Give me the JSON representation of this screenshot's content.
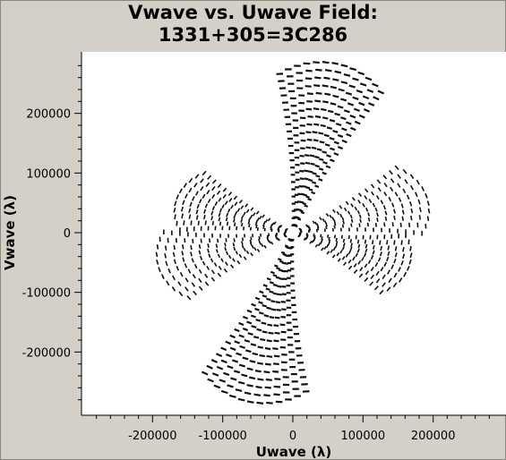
{
  "title_line1": "Vwave vs. Uwave Field:",
  "title_line2": "1331+305=3C286",
  "chart_data": {
    "type": "scatter",
    "title": "Vwave vs. Uwave Field: 1331+305=3C286",
    "xlabel": "Uwave (λ)",
    "ylabel": "Vwave (λ)",
    "xlim": [
      -300000,
      300000
    ],
    "ylim": [
      -300000,
      300000
    ],
    "xticks": [
      -200000,
      -100000,
      0,
      100000,
      200000
    ],
    "xtick_labels": [
      "-200000",
      "-100000",
      "0",
      "100000",
      "200000"
    ],
    "yticks": [
      -200000,
      -100000,
      0,
      100000,
      200000
    ],
    "ytick_labels": [
      "-200000",
      "-100000",
      "0",
      "100000",
      "200000"
    ],
    "grid": false,
    "point_color": "#111111",
    "background": "#ffffff",
    "description_of_marks": "uv-coverage tracks: three arms (steep arm through origin and two shallow arms) mirrored through origin",
    "arms": [
      {
        "name": "",
        "angle_deg": 78,
        "max_r": 290000
      },
      {
        "name": "",
        "angle_deg": 18,
        "max_r": 200000
      },
      {
        "name": "",
        "angle_deg": 160,
        "max_r": 175000
      }
    ]
  }
}
